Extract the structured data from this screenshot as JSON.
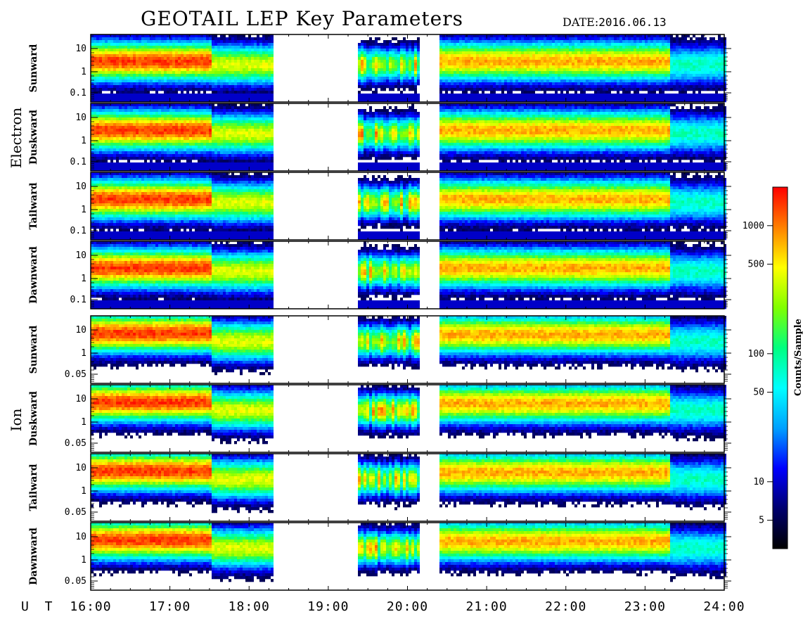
{
  "header": {
    "title": "GEOTAIL LEP Key Parameters",
    "date_label": "DATE:",
    "date_value": "2016.06.13"
  },
  "chart_data": {
    "type": "heatmap",
    "title": "GEOTAIL LEP Key Parameters",
    "date": "2016.06.13",
    "x_axis": {
      "label": "U T",
      "range": [
        "16:00",
        "24:00"
      ],
      "tick_labels": [
        "16:00",
        "17:00",
        "18:00",
        "19:00",
        "20:00",
        "21:00",
        "22:00",
        "23:00",
        "24:00"
      ],
      "range_hours": [
        16,
        24
      ]
    },
    "data_gaps_hours": [
      [
        18.3,
        19.35
      ],
      [
        20.15,
        20.4
      ]
    ],
    "groups": [
      {
        "name": "Electron",
        "panels": [
          "Sunward",
          "Duskward",
          "Tailward",
          "Dawnward"
        ],
        "y_tick_labels": [
          "10",
          "1",
          "0.1"
        ],
        "y_range": [
          0.06,
          20
        ],
        "y_scale": "log"
      },
      {
        "name": "Ion",
        "panels": [
          "Sunward",
          "Duskward",
          "Tailward",
          "Dawnward"
        ],
        "y_tick_labels": [
          "10",
          "1",
          "0.05"
        ],
        "y_range": [
          0.04,
          30
        ],
        "y_scale": "log"
      }
    ],
    "colorbar": {
      "label": "Counts/Sample",
      "scale": "log",
      "range": [
        3,
        2000
      ],
      "tick_labels": [
        "5",
        "10",
        "50",
        "100",
        "500",
        "1000"
      ],
      "colors": [
        "#000000",
        "#00006e",
        "#0000ff",
        "#00a0ff",
        "#00ffff",
        "#00ff80",
        "#80ff00",
        "#ffff00",
        "#ff8000",
        "#ff0000"
      ]
    }
  }
}
